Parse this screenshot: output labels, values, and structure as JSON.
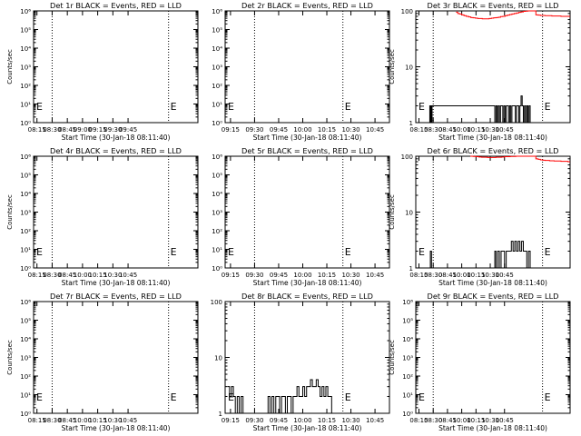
{
  "chart_data": [
    {
      "type": "line",
      "title": "Det 1r BLACK = Events, RED = LLD",
      "xlabel": "Start Time (30-Jan-18 08:11:40)",
      "ylabel": "Counts/sec",
      "yscale": "log",
      "ylim": [
        1,
        1000000
      ],
      "yticks": [
        "10⁰",
        "10¹",
        "10²",
        "10³",
        "10⁴",
        "10⁵",
        "10⁶"
      ],
      "xlim": [
        8.1944,
        10.9
      ],
      "xticks": [
        "08:15",
        "08:30",
        "08:45",
        "09:00",
        "09:15",
        "09:30",
        "09:45"
      ],
      "markers": [
        {
          "x": 8.1944,
          "label": "E"
        },
        {
          "x": 10.4167,
          "label": "E"
        }
      ],
      "dotted_lines": [
        8.5,
        10.4167
      ],
      "series": []
    },
    {
      "type": "line",
      "title": "Det 2r BLACK = Events, RED = LLD",
      "xlabel": "Start Time (30-Jan-18 08:11:40)",
      "ylabel": "",
      "yscale": "log",
      "ylim": [
        1,
        1000000
      ],
      "yticks": [
        "10⁰",
        "10¹",
        "10²",
        "10³",
        "10⁴",
        "10⁵",
        "10⁶"
      ],
      "xlim": [
        9.1944,
        10.9
      ],
      "xticks": [
        "09:15",
        "09:30",
        "09:45",
        "10:00",
        "10:15",
        "10:30",
        "10:45"
      ],
      "markers": [
        {
          "x": 9.1944,
          "label": "E"
        },
        {
          "x": 10.4167,
          "label": "E"
        }
      ],
      "dotted_lines": [
        9.5,
        10.4167
      ],
      "series": []
    },
    {
      "type": "line",
      "title": "Det 3r BLACK = Events, RED = LLD",
      "xlabel": "Start Time (30-Jan-18 08:11:40)",
      "ylabel": "Counts/sec",
      "yscale": "log",
      "ylim": [
        1,
        100
      ],
      "yticks": [
        "1",
        "10",
        "100"
      ],
      "xlim": [
        8.1944,
        10.9
      ],
      "xticks": [
        "08:15",
        "08:30",
        "08:45",
        "10:00",
        "10:15",
        "10:30",
        "10:45"
      ],
      "markers": [
        {
          "x": 8.1944,
          "label": "E"
        },
        {
          "x": 10.4167,
          "label": "E"
        }
      ],
      "dotted_lines": [
        8.5,
        10.4167
      ],
      "series": [
        {
          "color": "#000000",
          "x": [
            8.43,
            8.44,
            8.45,
            8.46,
            8.47,
            8.48,
            9.58,
            9.6,
            9.62,
            9.64,
            9.66,
            9.68,
            9.7,
            9.72,
            9.74,
            9.76,
            9.78,
            9.8,
            9.82,
            9.84,
            9.86,
            9.88,
            9.9,
            9.92,
            9.94,
            9.96,
            9.98,
            10.0,
            10.02,
            10.04,
            10.06,
            10.08,
            10.1,
            10.12,
            10.14,
            10.16,
            10.18,
            10.2
          ],
          "y": [
            1,
            2,
            1,
            2,
            1,
            2,
            1,
            2,
            1,
            2,
            1,
            2,
            2,
            1,
            2,
            1,
            2,
            2,
            1,
            2,
            1,
            2,
            2,
            2,
            1,
            2,
            2,
            1,
            2,
            3,
            2,
            1,
            2,
            1,
            2,
            1,
            2,
            1
          ]
        },
        {
          "color": "#ff0000",
          "x": [
            8.9,
            8.93,
            8.96,
            9.0,
            9.04,
            9.08,
            9.12,
            9.16,
            9.2,
            9.24,
            9.28,
            9.32,
            9.36,
            9.4,
            9.44,
            9.48,
            9.52,
            9.56,
            9.6,
            9.64,
            9.68,
            9.72,
            9.76,
            9.8,
            9.84,
            9.88,
            9.92,
            9.96,
            10.0,
            10.04,
            10.08,
            10.12,
            10.16,
            10.2,
            10.3,
            10.34,
            10.38,
            10.42,
            10.46,
            10.5,
            10.54,
            10.58,
            10.62,
            10.66,
            10.7,
            10.74,
            10.78,
            10.82,
            10.86,
            10.9
          ],
          "y": [
            95,
            90,
            88,
            85,
            82,
            80,
            78,
            76,
            75,
            74,
            73,
            73,
            72,
            72,
            72,
            73,
            74,
            75,
            76,
            77,
            79,
            80,
            82,
            84,
            86,
            88,
            90,
            92,
            94,
            96,
            98,
            99,
            100,
            100,
            85,
            84,
            83,
            83,
            82,
            82,
            82,
            81,
            81,
            81,
            81,
            80,
            80,
            80,
            80,
            80
          ]
        }
      ]
    },
    {
      "type": "line",
      "title": "Det 4r BLACK = Events, RED = LLD",
      "xlabel": "Start Time (30-Jan-18 08:11:40)",
      "ylabel": "Counts/sec",
      "yscale": "log",
      "ylim": [
        1,
        1000000
      ],
      "yticks": [
        "10⁰",
        "10¹",
        "10²",
        "10³",
        "10⁴",
        "10⁵",
        "10⁶"
      ],
      "xlim": [
        8.1944,
        10.9
      ],
      "xticks": [
        "08:15",
        "08:30",
        "08:45",
        "10:00",
        "10:15",
        "10:30",
        "10:45"
      ],
      "markers": [
        {
          "x": 8.1944,
          "label": "E"
        },
        {
          "x": 10.4167,
          "label": "E"
        }
      ],
      "dotted_lines": [
        8.5,
        10.4167
      ],
      "series": []
    },
    {
      "type": "line",
      "title": "Det 5r BLACK = Events, RED = LLD",
      "xlabel": "Start Time (30-Jan-18 08:11:40)",
      "ylabel": "",
      "yscale": "log",
      "ylim": [
        1,
        1000000
      ],
      "yticks": [
        "10⁰",
        "10¹",
        "10²",
        "10³",
        "10⁴",
        "10⁵",
        "10⁶"
      ],
      "xlim": [
        9.1944,
        10.9
      ],
      "xticks": [
        "09:15",
        "09:30",
        "09:45",
        "10:00",
        "10:15",
        "10:30",
        "10:45"
      ],
      "markers": [
        {
          "x": 9.1944,
          "label": "E"
        },
        {
          "x": 10.4167,
          "label": "E"
        }
      ],
      "dotted_lines": [
        9.5,
        10.4167
      ],
      "series": []
    },
    {
      "type": "line",
      "title": "Det 6r BLACK = Events, RED = LLD",
      "xlabel": "Start Time (30-Jan-18 08:11:40)",
      "ylabel": "Counts/sec",
      "yscale": "log",
      "ylim": [
        1,
        100
      ],
      "yticks": [
        "1",
        "10",
        "100"
      ],
      "xlim": [
        8.1944,
        10.9
      ],
      "xticks": [
        "08:15",
        "08:30",
        "08:45",
        "10:00",
        "10:15",
        "10:30",
        "10:45"
      ],
      "markers": [
        {
          "x": 8.1944,
          "label": "E"
        },
        {
          "x": 10.4167,
          "label": "E"
        }
      ],
      "dotted_lines": [
        8.5,
        10.4167
      ],
      "series": [
        {
          "color": "#000000",
          "x": [
            8.43,
            8.45,
            8.47,
            9.55,
            9.58,
            9.6,
            9.63,
            9.66,
            9.69,
            9.72,
            9.75,
            9.78,
            9.81,
            9.84,
            9.87,
            9.9,
            9.93,
            9.96,
            9.99,
            10.02,
            10.05,
            10.08,
            10.11,
            10.14,
            10.17,
            10.2
          ],
          "y": [
            1,
            2,
            1,
            1,
            2,
            1,
            2,
            1,
            2,
            2,
            1,
            2,
            2,
            2,
            3,
            2,
            3,
            2,
            3,
            2,
            3,
            2,
            2,
            1,
            2,
            1
          ]
        },
        {
          "color": "#ff0000",
          "x": [
            9.15,
            9.2,
            9.25,
            9.3,
            9.35,
            9.4,
            9.45,
            9.5,
            9.55,
            9.6,
            9.65,
            9.7,
            9.75,
            9.8,
            9.85,
            9.9,
            9.95,
            10.0,
            10.05,
            10.1,
            10.15,
            10.2,
            10.3,
            10.34,
            10.38,
            10.42,
            10.46,
            10.5,
            10.54,
            10.58,
            10.62,
            10.66,
            10.7,
            10.74,
            10.78,
            10.82,
            10.86,
            10.9
          ],
          "y": [
            100,
            99,
            98,
            97,
            96,
            96,
            95,
            95,
            95,
            96,
            96,
            97,
            98,
            98,
            99,
            99,
            100,
            100,
            100,
            100,
            100,
            100,
            90,
            88,
            86,
            85,
            84,
            84,
            83,
            83,
            82,
            82,
            82,
            81,
            81,
            81,
            80,
            80
          ]
        }
      ]
    },
    {
      "type": "line",
      "title": "Det 7r BLACK = Events, RED = LLD",
      "xlabel": "Start Time (30-Jan-18 08:11:40)",
      "ylabel": "Counts/sec",
      "yscale": "log",
      "ylim": [
        1,
        1000000
      ],
      "yticks": [
        "10⁰",
        "10¹",
        "10²",
        "10³",
        "10⁴",
        "10⁵",
        "10⁶"
      ],
      "xlim": [
        8.1944,
        10.9
      ],
      "xticks": [
        "08:15",
        "08:30",
        "08:45",
        "10:00",
        "10:15",
        "10:30",
        "10:45"
      ],
      "markers": [
        {
          "x": 8.1944,
          "label": "E"
        },
        {
          "x": 10.4167,
          "label": "E"
        }
      ],
      "dotted_lines": [
        8.5,
        10.4167
      ],
      "series": []
    },
    {
      "type": "line",
      "title": "Det 8r BLACK = Events, RED = LLD",
      "xlabel": "Start Time (30-Jan-18 08:11:40)",
      "ylabel": "",
      "yscale": "log",
      "ylim": [
        1,
        100
      ],
      "yticks": [
        "1",
        "10",
        "100"
      ],
      "xlim": [
        9.1944,
        10.9
      ],
      "xticks": [
        "09:15",
        "09:30",
        "09:45",
        "10:00",
        "10:15",
        "10:30",
        "10:45"
      ],
      "markers": [
        {
          "x": 9.1944,
          "label": "E"
        },
        {
          "x": 10.4167,
          "label": "E"
        }
      ],
      "dotted_lines": [
        9.5,
        10.4167
      ],
      "series": [
        {
          "color": "#000000",
          "x": [
            9.22,
            9.24,
            9.26,
            9.28,
            9.3,
            9.32,
            9.34,
            9.36,
            9.38,
            9.62,
            9.64,
            9.66,
            9.68,
            9.7,
            9.72,
            9.74,
            9.76,
            9.78,
            9.8,
            9.82,
            9.84,
            9.86,
            9.88,
            9.9,
            9.92,
            9.94,
            9.96,
            9.98,
            10.0,
            10.02,
            10.04,
            10.06,
            10.08,
            10.1,
            10.12,
            10.14,
            10.16,
            10.18,
            10.2,
            10.22,
            10.24,
            10.26,
            10.28,
            10.3
          ],
          "y": [
            3,
            2,
            3,
            2,
            1,
            2,
            1,
            2,
            1,
            1,
            2,
            1,
            2,
            1,
            2,
            2,
            1,
            2,
            2,
            1,
            2,
            2,
            1,
            2,
            2,
            3,
            2,
            2,
            3,
            2,
            3,
            3,
            4,
            3,
            3,
            4,
            3,
            2,
            3,
            2,
            3,
            2,
            2,
            1
          ]
        }
      ]
    },
    {
      "type": "line",
      "title": "Det 9r BLACK = Events, RED = LLD",
      "xlabel": "Start Time (30-Jan-18 08:11:40)",
      "ylabel": "Counts/sec",
      "yscale": "log",
      "ylim": [
        1,
        1000000
      ],
      "yticks": [
        "10⁰",
        "10¹",
        "10²",
        "10³",
        "10⁴",
        "10⁵",
        "10⁶"
      ],
      "xlim": [
        8.1944,
        10.9
      ],
      "xticks": [
        "08:15",
        "08:30",
        "08:45",
        "10:00",
        "10:15",
        "10:30",
        "10:45"
      ],
      "markers": [
        {
          "x": 8.1944,
          "label": "E"
        },
        {
          "x": 10.4167,
          "label": "E"
        }
      ],
      "dotted_lines": [
        8.5,
        10.4167
      ],
      "series": []
    }
  ]
}
